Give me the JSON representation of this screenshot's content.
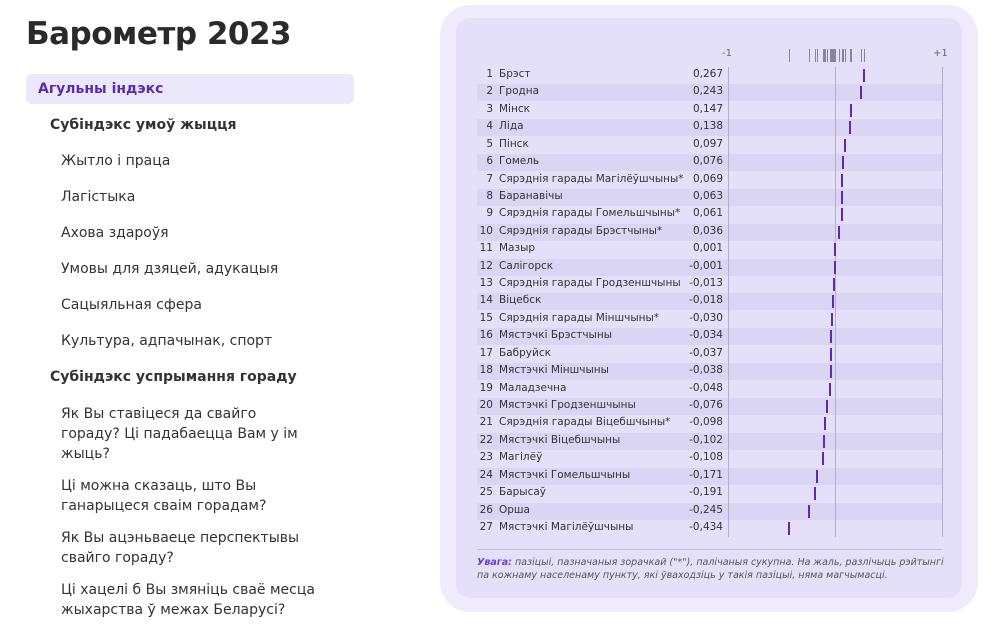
{
  "title": "Барометр 2023",
  "menu": {
    "active": "Агульны індэкс",
    "sub1": "Субіндэкс умоў жыцця",
    "sub1_items": [
      "Жытло і праца",
      "Лагістыка",
      "Ахова здароўя",
      "Умовы для дзяцей, адукацыя",
      "Сацыяльная сфера",
      "Культура, адпачынак, спорт"
    ],
    "sub2": "Субіндэкс успрымання гораду",
    "sub2_items": [
      "Як Вы ставіцеся да свайго гораду? Ці падабаецца Вам у ім жыць?",
      "Ці можна сказаць, што Вы ганарыцеся сваім горадам?",
      "Як Вы ацэньваеце перспектывы свайго гораду?",
      "Ці хацелі б Вы змяніць сваё месца жыхарства ў межах Беларусі?"
    ]
  },
  "chart_data": {
    "type": "dot-strip",
    "axis_min_label": "-1",
    "axis_max_label": "+1",
    "xlim": [
      -1,
      1
    ],
    "mark_color": "#5b2bb0",
    "rows": [
      {
        "rank": "1",
        "name": "Брэст",
        "label": "0,267",
        "value": 0.267
      },
      {
        "rank": "2",
        "name": "Гродна",
        "label": "0,243",
        "value": 0.243
      },
      {
        "rank": "3",
        "name": "Мінск",
        "label": "0,147",
        "value": 0.147
      },
      {
        "rank": "4",
        "name": "Ліда",
        "label": "0,138",
        "value": 0.138
      },
      {
        "rank": "5",
        "name": "Пінск",
        "label": "0,097",
        "value": 0.097
      },
      {
        "rank": "6",
        "name": "Гомель",
        "label": "0,076",
        "value": 0.076
      },
      {
        "rank": "7",
        "name": "Сярэднія гарады Магілёўшчыны*",
        "label": "0,069",
        "value": 0.069
      },
      {
        "rank": "8",
        "name": "Баранавічы",
        "label": "0,063",
        "value": 0.063
      },
      {
        "rank": "9",
        "name": "Сярэднія гарады Гомельшчыны*",
        "label": "0,061",
        "value": 0.061
      },
      {
        "rank": "10",
        "name": "Сярэднія гарады Брэстчыны*",
        "label": "0,036",
        "value": 0.036
      },
      {
        "rank": "11",
        "name": "Мазыр",
        "label": "0,001",
        "value": 0.001
      },
      {
        "rank": "12",
        "name": "Салігорск",
        "label": "-0,001",
        "value": -0.001
      },
      {
        "rank": "13",
        "name": "Сярэднія гарады Гродзеншчыны",
        "label": "-0,013",
        "value": -0.013
      },
      {
        "rank": "14",
        "name": "Віцебск",
        "label": "-0,018",
        "value": -0.018
      },
      {
        "rank": "15",
        "name": "Сярэднія гарады Міншчыны*",
        "label": "-0,030",
        "value": -0.03
      },
      {
        "rank": "16",
        "name": "Мястэчкі Брэстчыны",
        "label": "-0,034",
        "value": -0.034
      },
      {
        "rank": "17",
        "name": "Бабруйск",
        "label": "-0,037",
        "value": -0.037
      },
      {
        "rank": "18",
        "name": "Мястэчкі Міншчыны",
        "label": "-0,038",
        "value": -0.038
      },
      {
        "rank": "19",
        "name": "Маладзечна",
        "label": "-0,048",
        "value": -0.048
      },
      {
        "rank": "20",
        "name": "Мястэчкі Гродзеншчыны",
        "label": "-0,076",
        "value": -0.076
      },
      {
        "rank": "21",
        "name": "Сярэднія гарады Віцебшчыны*",
        "label": "-0,098",
        "value": -0.098
      },
      {
        "rank": "22",
        "name": "Мястэчкі Віцебшчыны",
        "label": "-0,102",
        "value": -0.102
      },
      {
        "rank": "23",
        "name": "Магілёў",
        "label": "-0,108",
        "value": -0.108
      },
      {
        "rank": "24",
        "name": "Мястэчкі Гомельшчыны",
        "label": "-0,171",
        "value": -0.171
      },
      {
        "rank": "25",
        "name": "Барысаў",
        "label": "-0,191",
        "value": -0.191
      },
      {
        "rank": "26",
        "name": "Орша",
        "label": "-0,245",
        "value": -0.245
      },
      {
        "rank": "27",
        "name": "Мястэчкі Магілёўшчыны",
        "label": "-0,434",
        "value": -0.434
      }
    ]
  },
  "note": {
    "label": "Увага:",
    "text": " пазіцыі, пазначаныя зорачкай (\"*\"), палічаныя сукупна. На жаль, разлічыць рэйтынгі па кожнаму населенаму пункту, які ўваходзіць у такія пазіцыі, няма магчымасці."
  }
}
